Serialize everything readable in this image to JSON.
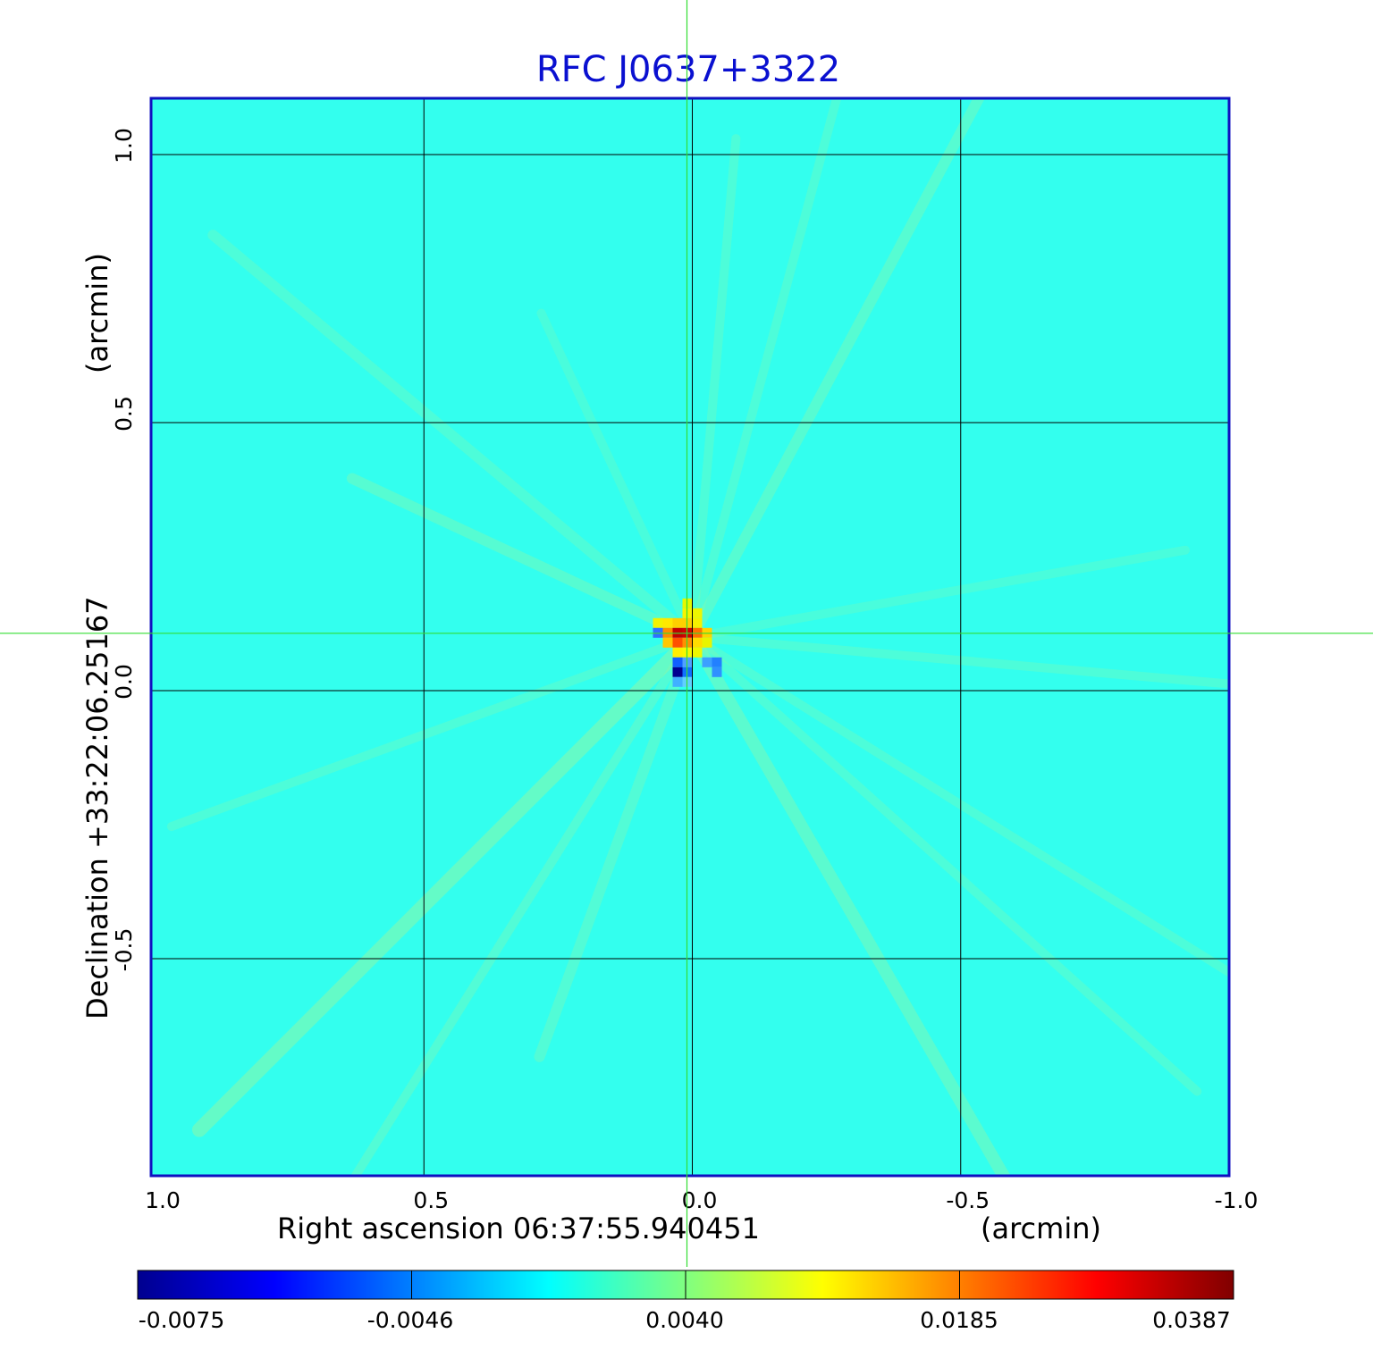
{
  "chart_data": {
    "type": "heatmap",
    "title": "RFC J0637+3322",
    "xlabel": "Right ascension  06:37:55.940451",
    "xunit": "(arcmin)",
    "ylabel": "Declination  +33:22:06.25167",
    "yunit": "(arcmin)",
    "xlim": [
      1.0,
      -1.0
    ],
    "ylim": [
      -1.0,
      1.1
    ],
    "x_ticks": [
      {
        "value": 1.0,
        "label": "1.0"
      },
      {
        "value": 0.5,
        "label": "0.5"
      },
      {
        "value": 0.0,
        "label": "0.0"
      },
      {
        "value": -0.5,
        "label": "-0.5"
      },
      {
        "value": -1.0,
        "label": "-1.0"
      }
    ],
    "y_ticks": [
      {
        "value": 1.0,
        "label": "1.0"
      },
      {
        "value": 0.5,
        "label": "0.5"
      },
      {
        "value": 0.0,
        "label": "0.0"
      },
      {
        "value": -0.5,
        "label": "-0.5"
      }
    ],
    "grid": true,
    "crosshair": {
      "x": 0.01,
      "y": 0.107
    },
    "colormap": "jet",
    "colorbar_ticks": [
      "-0.0075",
      "-0.0046",
      "0.0040",
      "0.0185",
      "0.0387"
    ],
    "peak": {
      "x": 0.0,
      "y": 0.1,
      "value": 0.0387
    },
    "colors": {
      "frame": "#1010c0",
      "grid": "#000000",
      "crosshair": "#33dd33",
      "background_level": "#33ffee"
    }
  }
}
